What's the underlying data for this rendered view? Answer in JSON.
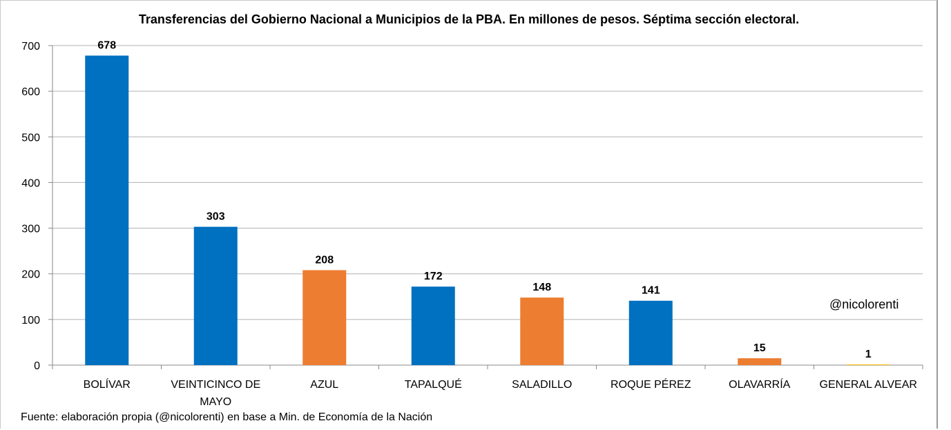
{
  "chart_data": {
    "type": "bar",
    "title": "Transferencias del Gobierno Nacional a Municipios de la PBA. En millones de pesos.  Séptima sección electoral.",
    "categories": [
      [
        "BOLÍVAR"
      ],
      [
        "VEINTICINCO DE",
        "MAYO"
      ],
      [
        "AZUL"
      ],
      [
        "TAPALQUÉ"
      ],
      [
        "SALADILLO"
      ],
      [
        "ROQUE PÉREZ"
      ],
      [
        "OLAVARRÍA"
      ],
      [
        "GENERAL ALVEAR"
      ]
    ],
    "values": [
      678,
      303,
      208,
      172,
      148,
      141,
      15,
      1
    ],
    "data_labels": [
      "678",
      "303",
      "208",
      "172",
      "148",
      "141",
      "15",
      "1"
    ],
    "bar_colors": [
      "#0070c0",
      "#0070c0",
      "#ed7d31",
      "#0070c0",
      "#ed7d31",
      "#0070c0",
      "#ed7d31",
      "#ffc000"
    ],
    "ylim": [
      0,
      700
    ],
    "yticks": [
      0,
      100,
      200,
      300,
      400,
      500,
      600,
      700
    ],
    "grid": true,
    "legend": "none",
    "xlabel": "",
    "ylabel": ""
  },
  "watermark": "@nicolorenti",
  "source": "Fuente: elaboración propia (@nicolorenti) en base a Min. de Economía de la Nación"
}
